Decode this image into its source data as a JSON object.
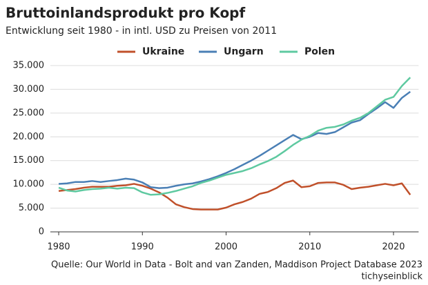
{
  "chart_data": {
    "type": "line",
    "title": "Bruttoinlandsprodukt pro Kopf",
    "subtitle": "Entwicklung seit 1980 - in intl. USD zu Preisen von 2011",
    "source": "Quelle: Our World in Data - Bolt and van Zanden, Maddison Project Database 2023",
    "brand": "tichyseinblick",
    "x": [
      1980,
      1981,
      1982,
      1983,
      1984,
      1985,
      1986,
      1987,
      1988,
      1989,
      1990,
      1991,
      1992,
      1993,
      1994,
      1995,
      1996,
      1997,
      1998,
      1999,
      2000,
      2001,
      2002,
      2003,
      2004,
      2005,
      2006,
      2007,
      2008,
      2009,
      2010,
      2011,
      2012,
      2013,
      2014,
      2015,
      2016,
      2017,
      2018,
      2019,
      2020,
      2021,
      2022
    ],
    "series": [
      {
        "name": "Ukraine",
        "color": "#c0502a",
        "values": [
          8600,
          8800,
          9000,
          9300,
          9500,
          9500,
          9500,
          9700,
          9800,
          10100,
          9700,
          9100,
          8300,
          7200,
          5800,
          5200,
          4800,
          4700,
          4700,
          4700,
          5100,
          5800,
          6300,
          7000,
          8000,
          8400,
          9200,
          10300,
          10800,
          9400,
          9600,
          10300,
          10400,
          10400,
          9900,
          9000,
          9300,
          9500,
          9800,
          10100,
          9800,
          10200,
          7800
        ]
      },
      {
        "name": "Ungarn",
        "color": "#4a7fb5",
        "values": [
          10100,
          10200,
          10500,
          10500,
          10700,
          10500,
          10700,
          10900,
          11200,
          11000,
          10400,
          9400,
          9200,
          9300,
          9700,
          10000,
          10200,
          10600,
          11100,
          11700,
          12400,
          13200,
          14100,
          15000,
          16000,
          17100,
          18200,
          19300,
          20400,
          19500,
          20000,
          20800,
          20600,
          21000,
          22000,
          23000,
          23500,
          24800,
          26000,
          27300,
          26100,
          28200,
          29500
        ]
      },
      {
        "name": "Polen",
        "color": "#5ec9a0",
        "values": [
          9300,
          8700,
          8500,
          8800,
          9000,
          9100,
          9300,
          9100,
          9300,
          9200,
          8300,
          7800,
          7900,
          8200,
          8600,
          9100,
          9600,
          10300,
          10800,
          11400,
          12000,
          12400,
          12800,
          13400,
          14200,
          14900,
          15800,
          17000,
          18300,
          19400,
          20200,
          21300,
          21900,
          22100,
          22600,
          23400,
          24000,
          25000,
          26400,
          27800,
          28400,
          30700,
          32500
        ]
      }
    ],
    "xlim": [
      1979,
      2023
    ],
    "xticks": [
      1980,
      1990,
      2000,
      2010,
      2020
    ],
    "ylim": [
      0,
      35000
    ],
    "yticks": [
      0,
      {
        "value": 5000,
        "label": "5.000"
      },
      {
        "value": 10000,
        "label": "10.000"
      },
      {
        "value": 15000,
        "label": "15.000"
      },
      {
        "value": 20000,
        "label": "20.000"
      },
      {
        "value": 25000,
        "label": "25.000"
      },
      {
        "value": 30000,
        "label": "30.000"
      },
      {
        "value": 35000,
        "label": "35.000"
      }
    ],
    "grid": true,
    "legend": "top"
  }
}
